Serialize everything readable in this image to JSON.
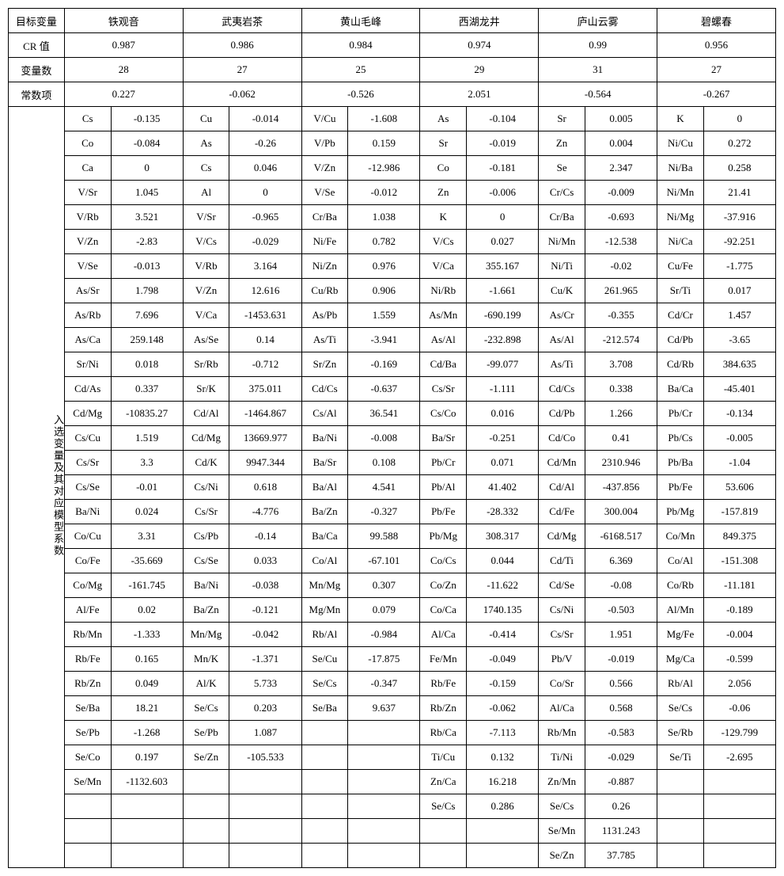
{
  "headers": {
    "targetVar": "目标变量",
    "crValue": "CR 值",
    "varCount": "变量数",
    "constant": "常数项",
    "selectedVars": "入选变量及其对应模型系数",
    "teas": [
      "铁观音",
      "武夷岩茶",
      "黄山毛峰",
      "西湖龙井",
      "庐山云雾",
      "碧螺春"
    ]
  },
  "summary": {
    "cr": [
      "0.987",
      "0.986",
      "0.984",
      "0.974",
      "0.99",
      "0.956"
    ],
    "varCount": [
      "28",
      "27",
      "25",
      "29",
      "31",
      "27"
    ],
    "constant": [
      "0.227",
      "-0.062",
      "-0.526",
      "2.051",
      "-0.564",
      "-0.267"
    ]
  },
  "rows": [
    [
      [
        "Cs",
        "-0.135"
      ],
      [
        "Cu",
        "-0.014"
      ],
      [
        "V/Cu",
        "-1.608"
      ],
      [
        "As",
        "-0.104"
      ],
      [
        "Sr",
        "0.005"
      ],
      [
        "K",
        "0"
      ]
    ],
    [
      [
        "Co",
        "-0.084"
      ],
      [
        "As",
        "-0.26"
      ],
      [
        "V/Pb",
        "0.159"
      ],
      [
        "Sr",
        "-0.019"
      ],
      [
        "Zn",
        "0.004"
      ],
      [
        "Ni/Cu",
        "0.272"
      ]
    ],
    [
      [
        "Ca",
        "0"
      ],
      [
        "Cs",
        "0.046"
      ],
      [
        "V/Zn",
        "-12.986"
      ],
      [
        "Co",
        "-0.181"
      ],
      [
        "Se",
        "2.347"
      ],
      [
        "Ni/Ba",
        "0.258"
      ]
    ],
    [
      [
        "V/Sr",
        "1.045"
      ],
      [
        "Al",
        "0"
      ],
      [
        "V/Se",
        "-0.012"
      ],
      [
        "Zn",
        "-0.006"
      ],
      [
        "Cr/Cs",
        "-0.009"
      ],
      [
        "Ni/Mn",
        "21.41"
      ]
    ],
    [
      [
        "V/Rb",
        "3.521"
      ],
      [
        "V/Sr",
        "-0.965"
      ],
      [
        "Cr/Ba",
        "1.038"
      ],
      [
        "K",
        "0"
      ],
      [
        "Cr/Ba",
        "-0.693"
      ],
      [
        "Ni/Mg",
        "-37.916"
      ]
    ],
    [
      [
        "V/Zn",
        "-2.83"
      ],
      [
        "V/Cs",
        "-0.029"
      ],
      [
        "Ni/Fe",
        "0.782"
      ],
      [
        "V/Cs",
        "0.027"
      ],
      [
        "Ni/Mn",
        "-12.538"
      ],
      [
        "Ni/Ca",
        "-92.251"
      ]
    ],
    [
      [
        "V/Se",
        "-0.013"
      ],
      [
        "V/Rb",
        "3.164"
      ],
      [
        "Ni/Zn",
        "0.976"
      ],
      [
        "V/Ca",
        "355.167"
      ],
      [
        "Ni/Ti",
        "-0.02"
      ],
      [
        "Cu/Fe",
        "-1.775"
      ]
    ],
    [
      [
        "As/Sr",
        "1.798"
      ],
      [
        "V/Zn",
        "12.616"
      ],
      [
        "Cu/Rb",
        "0.906"
      ],
      [
        "Ni/Rb",
        "-1.661"
      ],
      [
        "Cu/K",
        "261.965"
      ],
      [
        "Sr/Ti",
        "0.017"
      ]
    ],
    [
      [
        "As/Rb",
        "7.696"
      ],
      [
        "V/Ca",
        "-1453.631"
      ],
      [
        "As/Pb",
        "1.559"
      ],
      [
        "As/Mn",
        "-690.199"
      ],
      [
        "As/Cr",
        "-0.355"
      ],
      [
        "Cd/Cr",
        "1.457"
      ]
    ],
    [
      [
        "As/Ca",
        "259.148"
      ],
      [
        "As/Se",
        "0.14"
      ],
      [
        "As/Ti",
        "-3.941"
      ],
      [
        "As/Al",
        "-232.898"
      ],
      [
        "As/Al",
        "-212.574"
      ],
      [
        "Cd/Pb",
        "-3.65"
      ]
    ],
    [
      [
        "Sr/Ni",
        "0.018"
      ],
      [
        "Sr/Rb",
        "-0.712"
      ],
      [
        "Sr/Zn",
        "-0.169"
      ],
      [
        "Cd/Ba",
        "-99.077"
      ],
      [
        "As/Ti",
        "3.708"
      ],
      [
        "Cd/Rb",
        "384.635"
      ]
    ],
    [
      [
        "Cd/As",
        "0.337"
      ],
      [
        "Sr/K",
        "375.011"
      ],
      [
        "Cd/Cs",
        "-0.637"
      ],
      [
        "Cs/Sr",
        "-1.111"
      ],
      [
        "Cd/Cs",
        "0.338"
      ],
      [
        "Ba/Ca",
        "-45.401"
      ]
    ],
    [
      [
        "Cd/Mg",
        "-10835.27"
      ],
      [
        "Cd/Al",
        "-1464.867"
      ],
      [
        "Cs/Al",
        "36.541"
      ],
      [
        "Cs/Co",
        "0.016"
      ],
      [
        "Cd/Pb",
        "1.266"
      ],
      [
        "Pb/Cr",
        "-0.134"
      ]
    ],
    [
      [
        "Cs/Cu",
        "1.519"
      ],
      [
        "Cd/Mg",
        "13669.977"
      ],
      [
        "Ba/Ni",
        "-0.008"
      ],
      [
        "Ba/Sr",
        "-0.251"
      ],
      [
        "Cd/Co",
        "0.41"
      ],
      [
        "Pb/Cs",
        "-0.005"
      ]
    ],
    [
      [
        "Cs/Sr",
        "3.3"
      ],
      [
        "Cd/K",
        "9947.344"
      ],
      [
        "Ba/Sr",
        "0.108"
      ],
      [
        "Pb/Cr",
        "0.071"
      ],
      [
        "Cd/Mn",
        "2310.946"
      ],
      [
        "Pb/Ba",
        "-1.04"
      ]
    ],
    [
      [
        "Cs/Se",
        "-0.01"
      ],
      [
        "Cs/Ni",
        "0.618"
      ],
      [
        "Ba/Al",
        "4.541"
      ],
      [
        "Pb/Al",
        "41.402"
      ],
      [
        "Cd/Al",
        "-437.856"
      ],
      [
        "Pb/Fe",
        "53.606"
      ]
    ],
    [
      [
        "Ba/Ni",
        "0.024"
      ],
      [
        "Cs/Sr",
        "-4.776"
      ],
      [
        "Ba/Zn",
        "-0.327"
      ],
      [
        "Pb/Fe",
        "-28.332"
      ],
      [
        "Cd/Fe",
        "300.004"
      ],
      [
        "Pb/Mg",
        "-157.819"
      ]
    ],
    [
      [
        "Co/Cu",
        "3.31"
      ],
      [
        "Cs/Pb",
        "-0.14"
      ],
      [
        "Ba/Ca",
        "99.588"
      ],
      [
        "Pb/Mg",
        "308.317"
      ],
      [
        "Cd/Mg",
        "-6168.517"
      ],
      [
        "Co/Mn",
        "849.375"
      ]
    ],
    [
      [
        "Co/Fe",
        "-35.669"
      ],
      [
        "Cs/Se",
        "0.033"
      ],
      [
        "Co/Al",
        "-67.101"
      ],
      [
        "Co/Cs",
        "0.044"
      ],
      [
        "Cd/Ti",
        "6.369"
      ],
      [
        "Co/Al",
        "-151.308"
      ]
    ],
    [
      [
        "Co/Mg",
        "-161.745"
      ],
      [
        "Ba/Ni",
        "-0.038"
      ],
      [
        "Mn/Mg",
        "0.307"
      ],
      [
        "Co/Zn",
        "-11.622"
      ],
      [
        "Cd/Se",
        "-0.08"
      ],
      [
        "Co/Rb",
        "-11.181"
      ]
    ],
    [
      [
        "Al/Fe",
        "0.02"
      ],
      [
        "Ba/Zn",
        "-0.121"
      ],
      [
        "Mg/Mn",
        "0.079"
      ],
      [
        "Co/Ca",
        "1740.135"
      ],
      [
        "Cs/Ni",
        "-0.503"
      ],
      [
        "Al/Mn",
        "-0.189"
      ]
    ],
    [
      [
        "Rb/Mn",
        "-1.333"
      ],
      [
        "Mn/Mg",
        "-0.042"
      ],
      [
        "Rb/Al",
        "-0.984"
      ],
      [
        "Al/Ca",
        "-0.414"
      ],
      [
        "Cs/Sr",
        "1.951"
      ],
      [
        "Mg/Fe",
        "-0.004"
      ]
    ],
    [
      [
        "Rb/Fe",
        "0.165"
      ],
      [
        "Mn/K",
        "-1.371"
      ],
      [
        "Se/Cu",
        "-17.875"
      ],
      [
        "Fe/Mn",
        "-0.049"
      ],
      [
        "Pb/V",
        "-0.019"
      ],
      [
        "Mg/Ca",
        "-0.599"
      ]
    ],
    [
      [
        "Rb/Zn",
        "0.049"
      ],
      [
        "Al/K",
        "5.733"
      ],
      [
        "Se/Cs",
        "-0.347"
      ],
      [
        "Rb/Fe",
        "-0.159"
      ],
      [
        "Co/Sr",
        "0.566"
      ],
      [
        "Rb/Al",
        "2.056"
      ]
    ],
    [
      [
        "Se/Ba",
        "18.21"
      ],
      [
        "Se/Cs",
        "0.203"
      ],
      [
        "Se/Ba",
        "9.637"
      ],
      [
        "Rb/Zn",
        "-0.062"
      ],
      [
        "Al/Ca",
        "0.568"
      ],
      [
        "Se/Cs",
        "-0.06"
      ]
    ],
    [
      [
        "Se/Pb",
        "-1.268"
      ],
      [
        "Se/Pb",
        "1.087"
      ],
      [
        "",
        ""
      ],
      [
        "Rb/Ca",
        "-7.113"
      ],
      [
        "Rb/Mn",
        "-0.583"
      ],
      [
        "Se/Rb",
        "-129.799"
      ]
    ],
    [
      [
        "Se/Co",
        "0.197"
      ],
      [
        "Se/Zn",
        "-105.533"
      ],
      [
        "",
        ""
      ],
      [
        "Ti/Cu",
        "0.132"
      ],
      [
        "Ti/Ni",
        "-0.029"
      ],
      [
        "Se/Ti",
        "-2.695"
      ]
    ],
    [
      [
        "Se/Mn",
        "-1132.603"
      ],
      [
        "",
        ""
      ],
      [
        "",
        ""
      ],
      [
        "Zn/Ca",
        "16.218"
      ],
      [
        "Zn/Mn",
        "-0.887"
      ],
      [
        "",
        ""
      ]
    ],
    [
      [
        "",
        ""
      ],
      [
        "",
        ""
      ],
      [
        "",
        ""
      ],
      [
        "Se/Cs",
        "0.286"
      ],
      [
        "Se/Cs",
        "0.26"
      ],
      [
        "",
        ""
      ]
    ],
    [
      [
        "",
        ""
      ],
      [
        "",
        ""
      ],
      [
        "",
        ""
      ],
      [
        "",
        ""
      ],
      [
        "Se/Mn",
        "1131.243"
      ],
      [
        "",
        ""
      ]
    ],
    [
      [
        "",
        ""
      ],
      [
        "",
        ""
      ],
      [
        "",
        ""
      ],
      [
        "",
        ""
      ],
      [
        "Se/Zn",
        "37.785"
      ],
      [
        "",
        ""
      ]
    ]
  ]
}
